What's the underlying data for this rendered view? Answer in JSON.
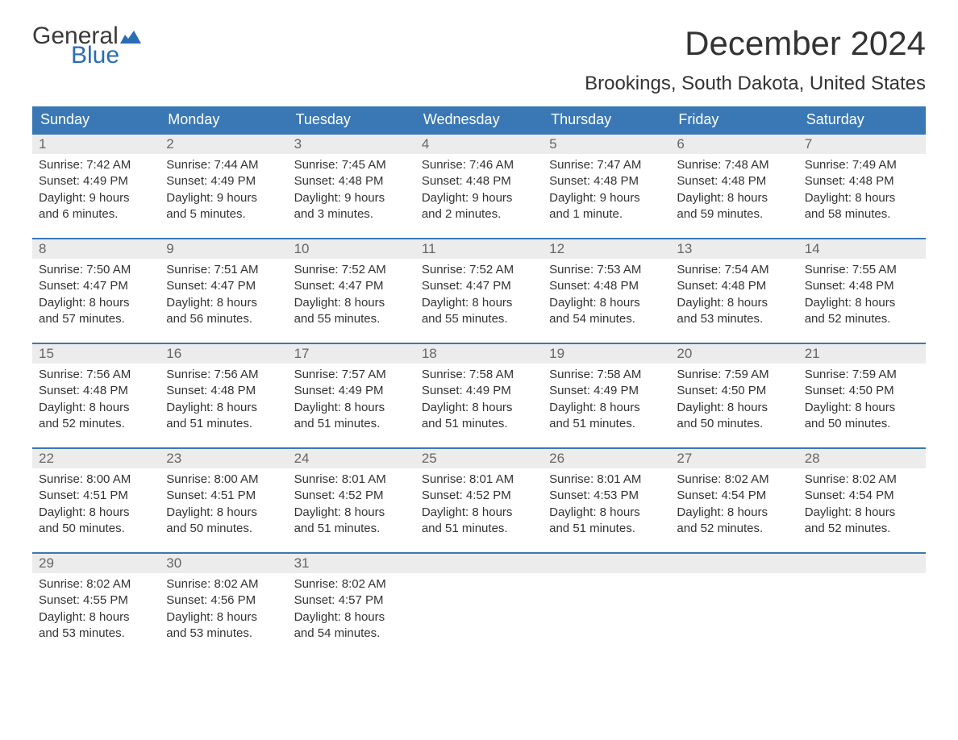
{
  "logo": {
    "text_top": "General",
    "text_bottom": "Blue",
    "flag_color": "#2a6db5"
  },
  "title": "December 2024",
  "subtitle": "Brookings, South Dakota, United States",
  "colors": {
    "header_bg": "#3a78b5",
    "header_text": "#ffffff",
    "week_border": "#3a78b5",
    "daynum_bg": "#ececec",
    "daynum_text": "#666666",
    "body_text": "#333333",
    "page_bg": "#ffffff"
  },
  "fonts": {
    "title_size": 42,
    "subtitle_size": 24,
    "weekday_size": 18,
    "daynum_size": 17,
    "body_size": 15
  },
  "weekdays": [
    "Sunday",
    "Monday",
    "Tuesday",
    "Wednesday",
    "Thursday",
    "Friday",
    "Saturday"
  ],
  "weeks": [
    [
      {
        "num": "1",
        "sunrise": "Sunrise: 7:42 AM",
        "sunset": "Sunset: 4:49 PM",
        "d1": "Daylight: 9 hours",
        "d2": "and 6 minutes."
      },
      {
        "num": "2",
        "sunrise": "Sunrise: 7:44 AM",
        "sunset": "Sunset: 4:49 PM",
        "d1": "Daylight: 9 hours",
        "d2": "and 5 minutes."
      },
      {
        "num": "3",
        "sunrise": "Sunrise: 7:45 AM",
        "sunset": "Sunset: 4:48 PM",
        "d1": "Daylight: 9 hours",
        "d2": "and 3 minutes."
      },
      {
        "num": "4",
        "sunrise": "Sunrise: 7:46 AM",
        "sunset": "Sunset: 4:48 PM",
        "d1": "Daylight: 9 hours",
        "d2": "and 2 minutes."
      },
      {
        "num": "5",
        "sunrise": "Sunrise: 7:47 AM",
        "sunset": "Sunset: 4:48 PM",
        "d1": "Daylight: 9 hours",
        "d2": "and 1 minute."
      },
      {
        "num": "6",
        "sunrise": "Sunrise: 7:48 AM",
        "sunset": "Sunset: 4:48 PM",
        "d1": "Daylight: 8 hours",
        "d2": "and 59 minutes."
      },
      {
        "num": "7",
        "sunrise": "Sunrise: 7:49 AM",
        "sunset": "Sunset: 4:48 PM",
        "d1": "Daylight: 8 hours",
        "d2": "and 58 minutes."
      }
    ],
    [
      {
        "num": "8",
        "sunrise": "Sunrise: 7:50 AM",
        "sunset": "Sunset: 4:47 PM",
        "d1": "Daylight: 8 hours",
        "d2": "and 57 minutes."
      },
      {
        "num": "9",
        "sunrise": "Sunrise: 7:51 AM",
        "sunset": "Sunset: 4:47 PM",
        "d1": "Daylight: 8 hours",
        "d2": "and 56 minutes."
      },
      {
        "num": "10",
        "sunrise": "Sunrise: 7:52 AM",
        "sunset": "Sunset: 4:47 PM",
        "d1": "Daylight: 8 hours",
        "d2": "and 55 minutes."
      },
      {
        "num": "11",
        "sunrise": "Sunrise: 7:52 AM",
        "sunset": "Sunset: 4:47 PM",
        "d1": "Daylight: 8 hours",
        "d2": "and 55 minutes."
      },
      {
        "num": "12",
        "sunrise": "Sunrise: 7:53 AM",
        "sunset": "Sunset: 4:48 PM",
        "d1": "Daylight: 8 hours",
        "d2": "and 54 minutes."
      },
      {
        "num": "13",
        "sunrise": "Sunrise: 7:54 AM",
        "sunset": "Sunset: 4:48 PM",
        "d1": "Daylight: 8 hours",
        "d2": "and 53 minutes."
      },
      {
        "num": "14",
        "sunrise": "Sunrise: 7:55 AM",
        "sunset": "Sunset: 4:48 PM",
        "d1": "Daylight: 8 hours",
        "d2": "and 52 minutes."
      }
    ],
    [
      {
        "num": "15",
        "sunrise": "Sunrise: 7:56 AM",
        "sunset": "Sunset: 4:48 PM",
        "d1": "Daylight: 8 hours",
        "d2": "and 52 minutes."
      },
      {
        "num": "16",
        "sunrise": "Sunrise: 7:56 AM",
        "sunset": "Sunset: 4:48 PM",
        "d1": "Daylight: 8 hours",
        "d2": "and 51 minutes."
      },
      {
        "num": "17",
        "sunrise": "Sunrise: 7:57 AM",
        "sunset": "Sunset: 4:49 PM",
        "d1": "Daylight: 8 hours",
        "d2": "and 51 minutes."
      },
      {
        "num": "18",
        "sunrise": "Sunrise: 7:58 AM",
        "sunset": "Sunset: 4:49 PM",
        "d1": "Daylight: 8 hours",
        "d2": "and 51 minutes."
      },
      {
        "num": "19",
        "sunrise": "Sunrise: 7:58 AM",
        "sunset": "Sunset: 4:49 PM",
        "d1": "Daylight: 8 hours",
        "d2": "and 51 minutes."
      },
      {
        "num": "20",
        "sunrise": "Sunrise: 7:59 AM",
        "sunset": "Sunset: 4:50 PM",
        "d1": "Daylight: 8 hours",
        "d2": "and 50 minutes."
      },
      {
        "num": "21",
        "sunrise": "Sunrise: 7:59 AM",
        "sunset": "Sunset: 4:50 PM",
        "d1": "Daylight: 8 hours",
        "d2": "and 50 minutes."
      }
    ],
    [
      {
        "num": "22",
        "sunrise": "Sunrise: 8:00 AM",
        "sunset": "Sunset: 4:51 PM",
        "d1": "Daylight: 8 hours",
        "d2": "and 50 minutes."
      },
      {
        "num": "23",
        "sunrise": "Sunrise: 8:00 AM",
        "sunset": "Sunset: 4:51 PM",
        "d1": "Daylight: 8 hours",
        "d2": "and 50 minutes."
      },
      {
        "num": "24",
        "sunrise": "Sunrise: 8:01 AM",
        "sunset": "Sunset: 4:52 PM",
        "d1": "Daylight: 8 hours",
        "d2": "and 51 minutes."
      },
      {
        "num": "25",
        "sunrise": "Sunrise: 8:01 AM",
        "sunset": "Sunset: 4:52 PM",
        "d1": "Daylight: 8 hours",
        "d2": "and 51 minutes."
      },
      {
        "num": "26",
        "sunrise": "Sunrise: 8:01 AM",
        "sunset": "Sunset: 4:53 PM",
        "d1": "Daylight: 8 hours",
        "d2": "and 51 minutes."
      },
      {
        "num": "27",
        "sunrise": "Sunrise: 8:02 AM",
        "sunset": "Sunset: 4:54 PM",
        "d1": "Daylight: 8 hours",
        "d2": "and 52 minutes."
      },
      {
        "num": "28",
        "sunrise": "Sunrise: 8:02 AM",
        "sunset": "Sunset: 4:54 PM",
        "d1": "Daylight: 8 hours",
        "d2": "and 52 minutes."
      }
    ],
    [
      {
        "num": "29",
        "sunrise": "Sunrise: 8:02 AM",
        "sunset": "Sunset: 4:55 PM",
        "d1": "Daylight: 8 hours",
        "d2": "and 53 minutes."
      },
      {
        "num": "30",
        "sunrise": "Sunrise: 8:02 AM",
        "sunset": "Sunset: 4:56 PM",
        "d1": "Daylight: 8 hours",
        "d2": "and 53 minutes."
      },
      {
        "num": "31",
        "sunrise": "Sunrise: 8:02 AM",
        "sunset": "Sunset: 4:57 PM",
        "d1": "Daylight: 8 hours",
        "d2": "and 54 minutes."
      },
      null,
      null,
      null,
      null
    ]
  ]
}
